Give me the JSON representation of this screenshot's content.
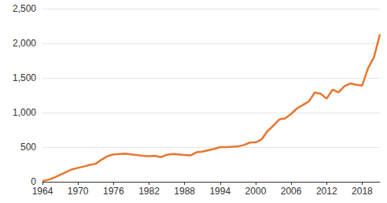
{
  "chart_data": {
    "type": "line",
    "x": [
      1964,
      1965,
      1966,
      1967,
      1968,
      1969,
      1970,
      1971,
      1972,
      1973,
      1974,
      1975,
      1976,
      1977,
      1978,
      1979,
      1980,
      1981,
      1982,
      1983,
      1984,
      1985,
      1986,
      1987,
      1988,
      1989,
      1990,
      1991,
      1992,
      1993,
      1994,
      1995,
      1996,
      1997,
      1998,
      1999,
      2000,
      2001,
      2002,
      2003,
      2004,
      2005,
      2006,
      2007,
      2008,
      2009,
      2010,
      2011,
      2012,
      2013,
      2014,
      2015,
      2016,
      2017,
      2018,
      2019,
      2020,
      2021
    ],
    "values": [
      10,
      30,
      60,
      100,
      140,
      180,
      200,
      220,
      245,
      260,
      320,
      370,
      395,
      400,
      405,
      395,
      385,
      375,
      370,
      375,
      355,
      390,
      400,
      395,
      385,
      380,
      425,
      435,
      455,
      475,
      500,
      500,
      505,
      510,
      530,
      565,
      570,
      610,
      730,
      810,
      900,
      915,
      980,
      1060,
      1110,
      1160,
      1290,
      1270,
      1200,
      1330,
      1290,
      1380,
      1420,
      1400,
      1390,
      1640,
      1800,
      2130
    ],
    "color": "#e8772e",
    "xlim": [
      1964,
      2021
    ],
    "xticks": [
      1964,
      1970,
      1976,
      1982,
      1988,
      1994,
      2000,
      2006,
      2012,
      2018
    ],
    "ylim": [
      0,
      2500
    ],
    "yticks": [
      0,
      500,
      {
        "value": 1000,
        "label": "1,000"
      },
      {
        "value": 1500,
        "label": "1,500"
      },
      {
        "value": 2000,
        "label": "2,000"
      },
      {
        "value": 2500,
        "label": "2,500"
      }
    ],
    "grid": true
  }
}
